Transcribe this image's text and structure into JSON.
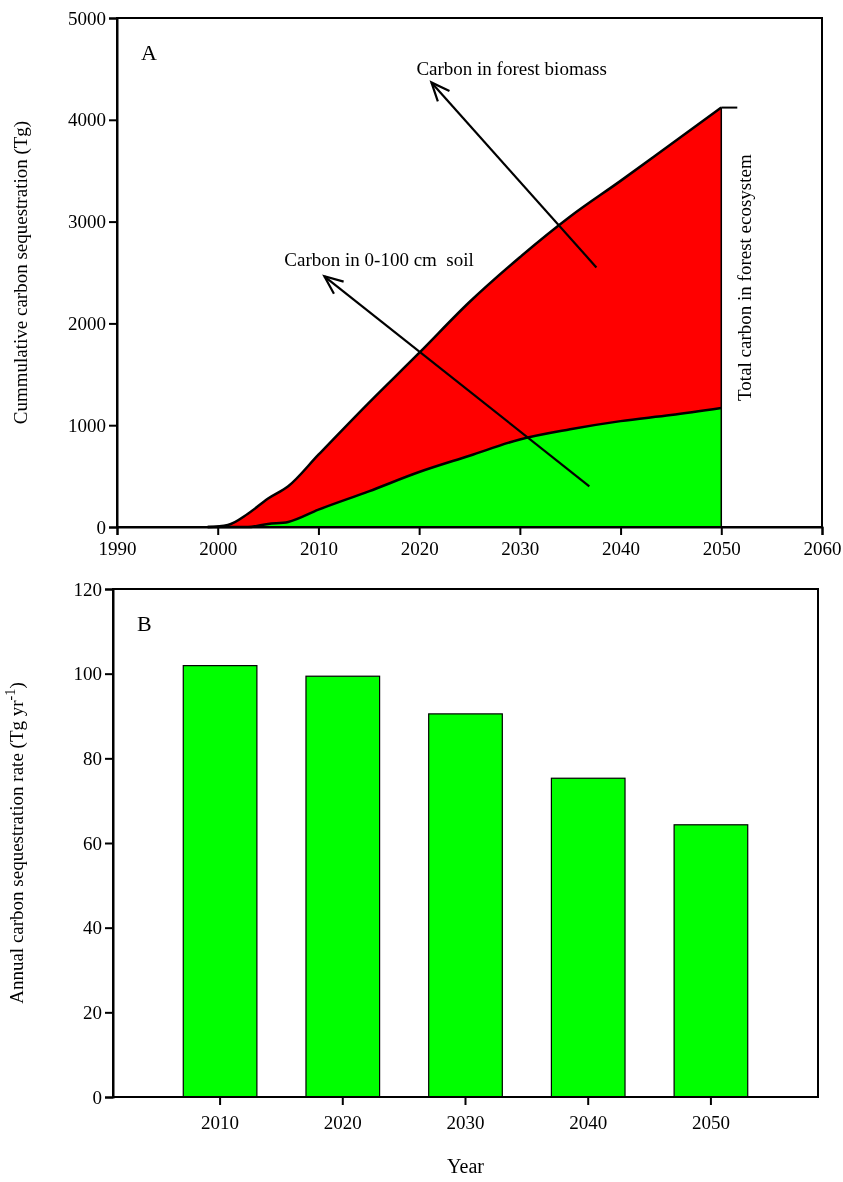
{
  "chart_data": [
    {
      "type": "area",
      "stacked": true,
      "ylabel": "Cummulative carbon sequestration (Tg)",
      "x": [
        1999,
        2001,
        2003,
        2005,
        2007,
        2010,
        2015,
        2020,
        2025,
        2030,
        2035,
        2040,
        2045,
        2050
      ],
      "series": [
        {
          "color": "#00ff00",
          "values": [
            0,
            0,
            0,
            30,
            50,
            170,
            350,
            540,
            700,
            860,
            960,
            1040,
            1100,
            1170
          ]
        },
        {
          "color": "#ff0000",
          "values": [
            0,
            20,
            130,
            250,
            350,
            540,
            870,
            1170,
            1510,
            1790,
            2090,
            2360,
            2660,
            2950
          ]
        }
      ],
      "xlim": [
        1990,
        2060
      ],
      "xticks": [
        1990,
        2000,
        2010,
        2020,
        2030,
        2040,
        2050,
        2060
      ],
      "ylim": [
        0,
        5000
      ],
      "yticks": [
        0,
        1000,
        2000,
        3000,
        4000,
        5000
      ],
      "annotations": [
        "A",
        "Carbon in 0-100 cm  soil",
        "Carbon in forest biomass",
        {
          "text": "Total carbon in forest ecosystem",
          "x": 2050,
          "y": 4120
        }
      ]
    },
    {
      "type": "bar",
      "xlabel": "Year",
      "ylabel": "Annual carbon sequestration rate (Tg yr$^{-1}$)",
      "categories": [
        "2010",
        "2020",
        "2030",
        "2040",
        "2050"
      ],
      "values": [
        101.9,
        99.4,
        90.5,
        75.3,
        64.3
      ],
      "color": "#00ff00",
      "ylim": [
        0,
        120
      ],
      "yticks": [
        0,
        20,
        40,
        60,
        80,
        100,
        120
      ],
      "annotations": [
        "B"
      ]
    }
  ]
}
